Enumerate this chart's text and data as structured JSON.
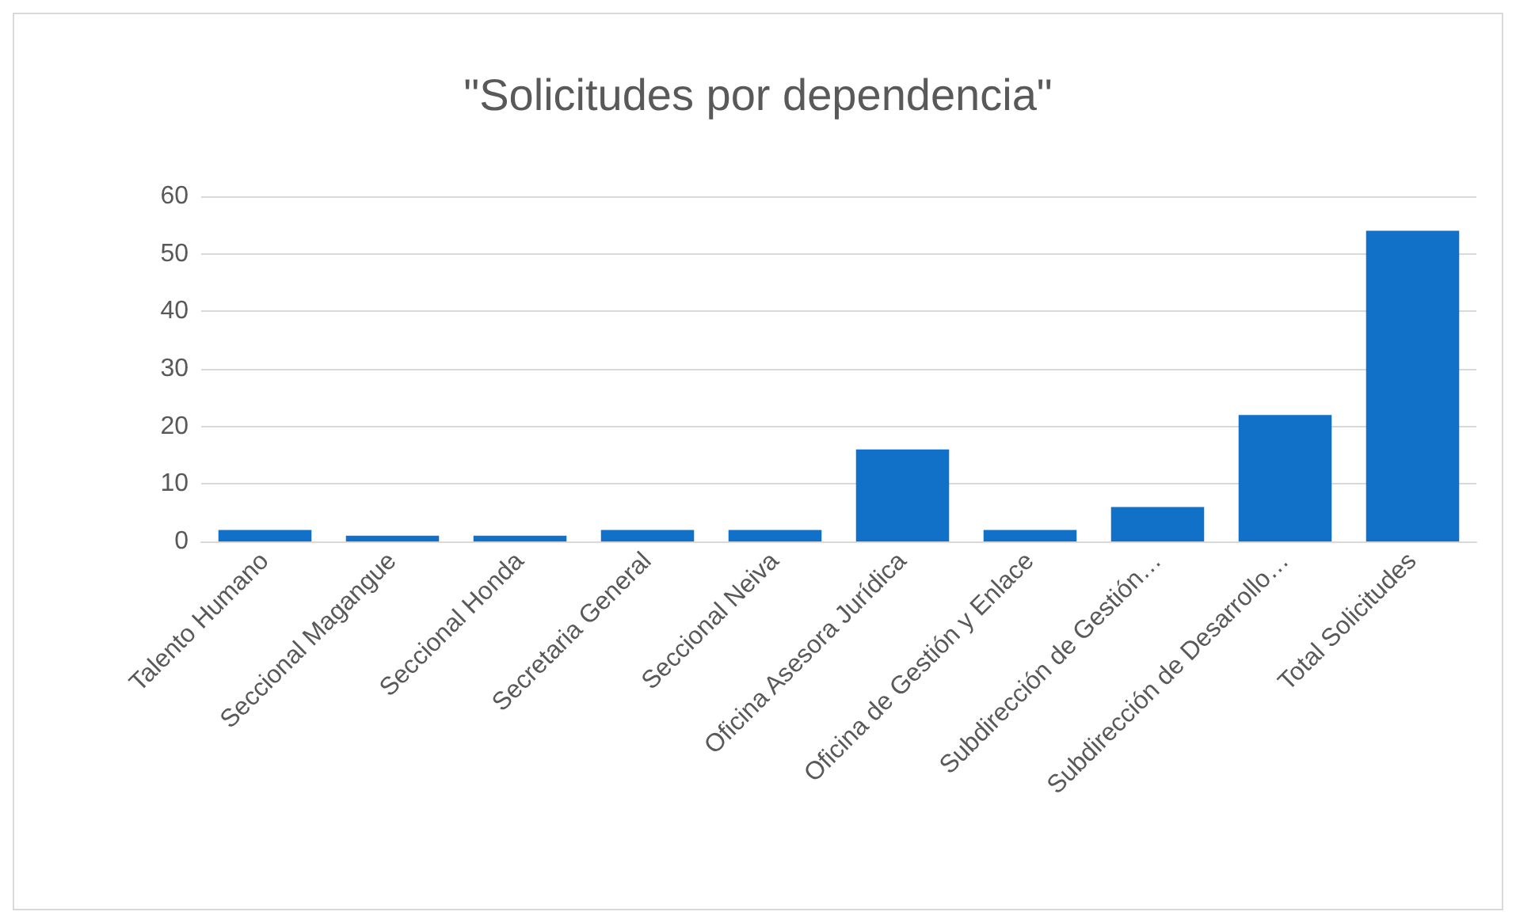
{
  "chart_data": {
    "type": "bar",
    "title": "\"Solicitudes por dependencia\"",
    "categories": [
      "Talento Humano",
      "Seccional Magangue",
      "Seccional Honda",
      "Secretaria General",
      "Seccional Neiva",
      "Oficina Asesora Jurídica",
      "Oficina de Gestión y Enlace",
      "Subdirección de Gestión…",
      "Subdirección de Desarrollo…",
      "Total Solicitudes"
    ],
    "values": [
      2,
      1,
      1,
      2,
      2,
      16,
      2,
      6,
      22,
      54
    ],
    "color": "#1170c8",
    "ylim": [
      0,
      60
    ],
    "yticks": [
      0,
      10,
      20,
      30,
      40,
      50,
      60
    ],
    "grid": "y"
  }
}
